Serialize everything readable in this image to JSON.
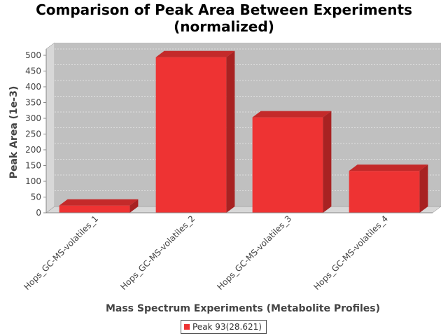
{
  "chart_data": {
    "type": "bar",
    "title": [
      "Comparison of Peak Area Between Experiments",
      "(normalized)"
    ],
    "xlabel": "Mass Spectrum Experiments (Metabolite Profiles)",
    "ylabel": "Peak Area (1e-3)",
    "ylim": [
      0,
      500
    ],
    "yticks": [
      0,
      50,
      100,
      150,
      200,
      250,
      300,
      350,
      400,
      450,
      500
    ],
    "categories": [
      "Hops_GC-MS-volatiles_1",
      "Hops_GC-MS-volatiles_2",
      "Hops_GC-MS-volatiles_3",
      "Hops_GC-MS-volatiles_4"
    ],
    "series": [
      {
        "name": "Peak 93(28.621)",
        "values": [
          23,
          494,
          303,
          133
        ],
        "color": "#ee3333"
      }
    ],
    "grid": true,
    "legend_position": "bottom",
    "style": "3d"
  }
}
